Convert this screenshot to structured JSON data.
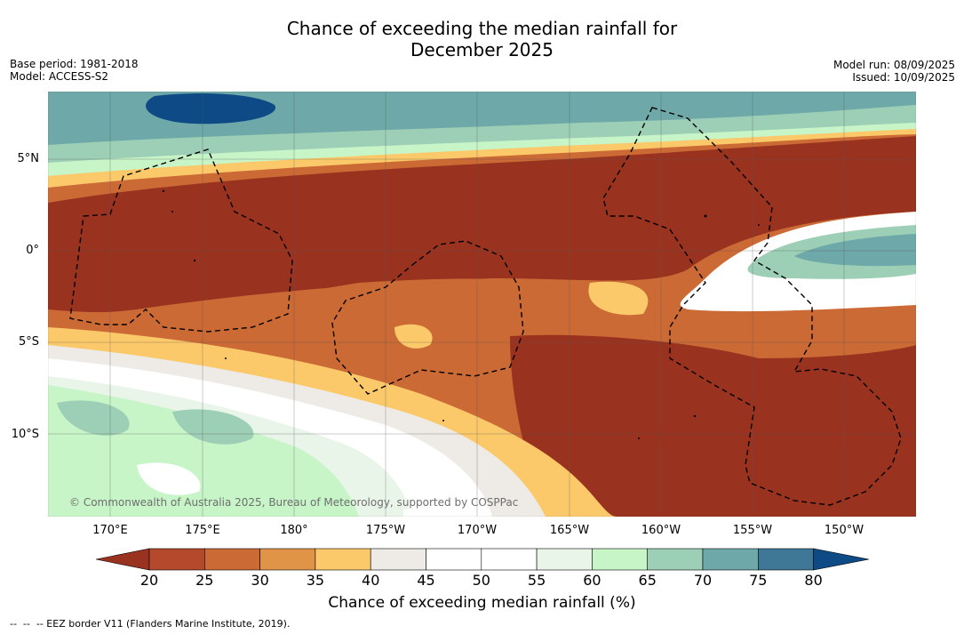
{
  "title_line1": "Chance of exceeding the median rainfall for",
  "title_line2": "December 2025",
  "base_period": "Base period: 1981-2018",
  "model": "Model: ACCESS-S2",
  "model_run": "Model run: 08/09/2025",
  "issued": "Issued: 10/09/2025",
  "lat_labels": [
    "5°N",
    "0°",
    "5°S",
    "10°S"
  ],
  "lon_labels": [
    "170°E",
    "175°E",
    "180°",
    "175°W",
    "170°W",
    "165°W",
    "160°W",
    "155°W",
    "150°W"
  ],
  "copyright": "© Commonwealth of Australia 2025, Bureau of Meteorology, supported by COSPPac",
  "colorbar": {
    "label": "Chance of exceeding median rainfall (%)",
    "ticks": [
      "20",
      "25",
      "30",
      "35",
      "40",
      "45",
      "50",
      "55",
      "60",
      "65",
      "70",
      "75",
      "80"
    ],
    "colors": [
      "#9a3220",
      "#b5492b",
      "#cb6a35",
      "#e09448",
      "#fbc96a",
      "#eeeae6",
      "#ffffff",
      "#ffffff",
      "#eaf5ea",
      "#c8f5c8",
      "#9ccfb5",
      "#6fa8a8",
      "#3f7897",
      "#0e4a86"
    ]
  },
  "footer": "--  --  -- EEZ border V11 (Flanders Marine Institute, 2019)."
}
